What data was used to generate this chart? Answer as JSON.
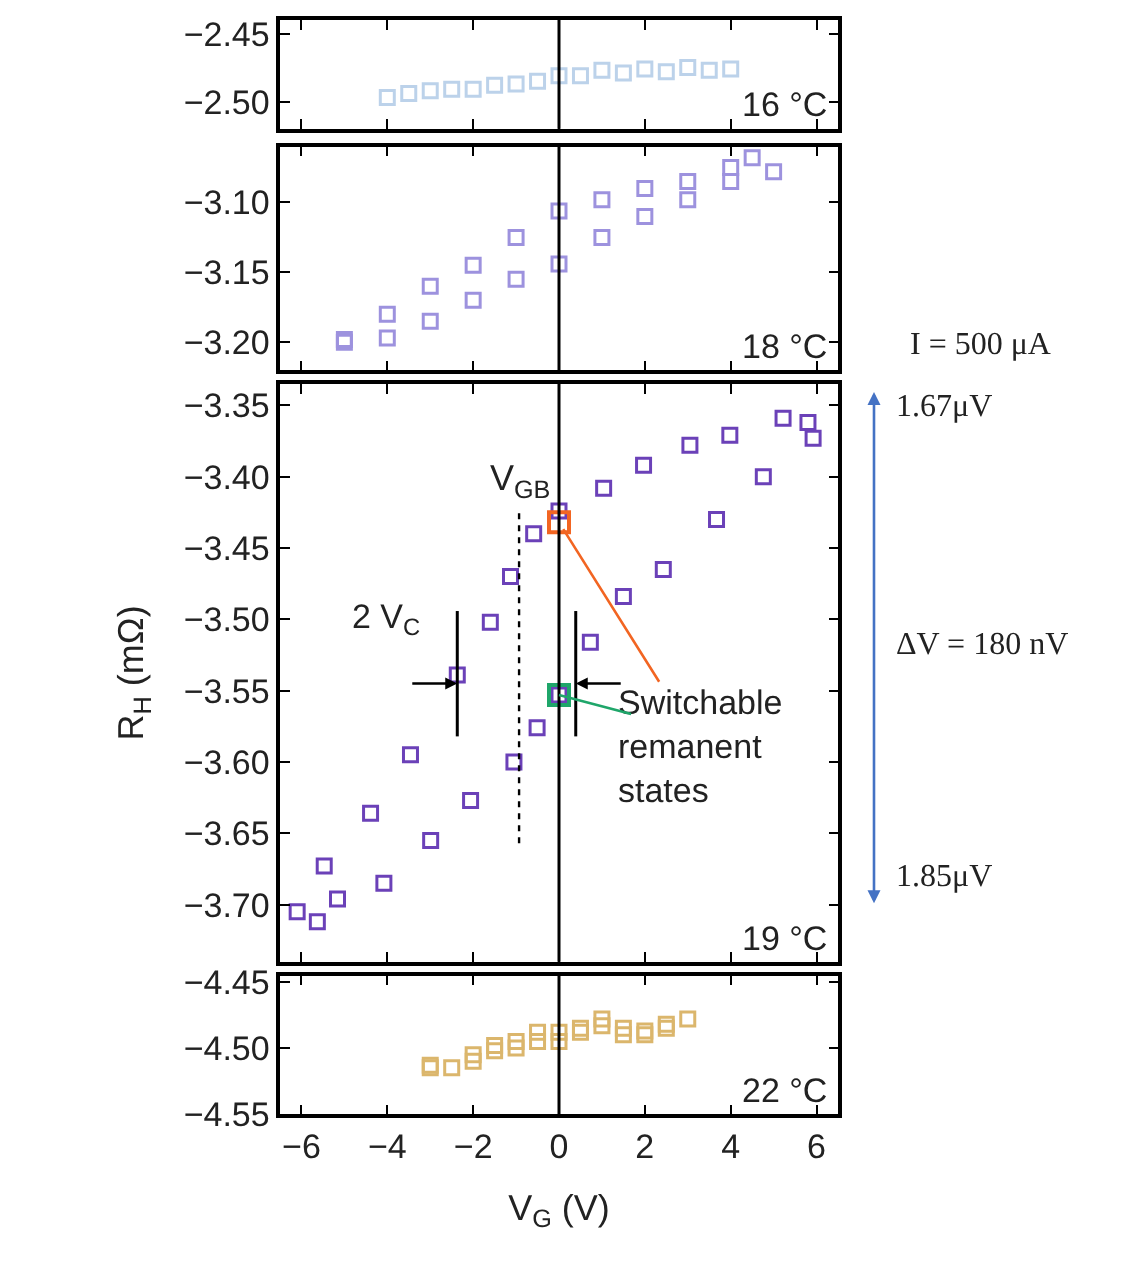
{
  "chart_data": [
    {
      "type": "scatter",
      "marker": "square",
      "xlim": [
        -6.5,
        6.5
      ],
      "xticks": [
        -6,
        -4,
        -2,
        0,
        2,
        4,
        6
      ],
      "ylim": [
        -2.52,
        -2.44
      ],
      "yticks": [
        {
          "value": -2.5,
          "label": "−2.50"
        },
        {
          "value": -2.45,
          "label": "−2.45"
        }
      ],
      "tick_labels": "y",
      "ref_lines": [
        {
          "axis": "x",
          "value": 0,
          "line_style": "solid"
        }
      ],
      "annotations": [
        "16 °C"
      ],
      "series": [
        {
          "color": "#bcd2ea",
          "x": [
            -4,
            -3,
            -2,
            -1,
            0,
            1,
            2,
            3,
            4,
            3.5,
            2.5,
            1.5,
            0.5,
            -0.5,
            -1.5,
            -2.5,
            -3.5
          ],
          "values": [
            -2.497,
            -2.492,
            -2.491,
            -2.487,
            -2.481,
            -2.477,
            -2.476,
            -2.475,
            -2.476,
            -2.477,
            -2.478,
            -2.479,
            -2.481,
            -2.485,
            -2.488,
            -2.491,
            -2.494
          ]
        }
      ]
    },
    {
      "type": "scatter",
      "marker": "square",
      "xlim": [
        -6.5,
        6.5
      ],
      "xticks": [
        -6,
        -4,
        -2,
        0,
        2,
        4,
        6
      ],
      "ylim": [
        -3.22,
        -3.06
      ],
      "yticks": [
        {
          "value": -3.2,
          "label": "−3.20"
        },
        {
          "value": -3.15,
          "label": "−3.15"
        },
        {
          "value": -3.1,
          "label": "−3.10"
        }
      ],
      "tick_labels": "y",
      "ref_lines": [
        {
          "axis": "x",
          "value": 0,
          "line_style": "solid"
        }
      ],
      "annotations": [
        "18 °C"
      ],
      "series": [
        {
          "color": "#9d92de",
          "x": [
            -5,
            -4,
            -3,
            -2,
            -1,
            0,
            1,
            2,
            3,
            4,
            4.5,
            5,
            4,
            3,
            2,
            1,
            0,
            -1,
            -2,
            -3,
            -4,
            -5
          ],
          "values": [
            -3.198,
            -3.18,
            -3.16,
            -3.145,
            -3.125,
            -3.106,
            -3.098,
            -3.09,
            -3.085,
            -3.075,
            -3.068,
            -3.078,
            -3.085,
            -3.098,
            -3.11,
            -3.125,
            -3.144,
            -3.155,
            -3.17,
            -3.185,
            -3.197,
            -3.2
          ]
        }
      ]
    },
    {
      "type": "scatter",
      "marker": "square",
      "ylabel": "R$_{H}$ (mΩ)",
      "xlim": [
        -6.5,
        6.5
      ],
      "xticks": [
        -6,
        -4,
        -2,
        0,
        2,
        4,
        6
      ],
      "ylim": [
        -3.74,
        -3.335
      ],
      "yticks": [
        {
          "value": -3.7,
          "label": "−3.70"
        },
        {
          "value": -3.65,
          "label": "−3.65"
        },
        {
          "value": -3.6,
          "label": "−3.60"
        },
        {
          "value": -3.55,
          "label": "−3.55"
        },
        {
          "value": -3.5,
          "label": "−3.50"
        },
        {
          "value": -3.45,
          "label": "−3.45"
        },
        {
          "value": -3.4,
          "label": "−3.40"
        },
        {
          "value": -3.35,
          "label": "−3.35"
        }
      ],
      "tick_labels": "y",
      "ref_lines": [
        {
          "axis": "x",
          "value": 0,
          "line_style": "solid"
        },
        {
          "axis": "x",
          "value": -0.93,
          "label": "V$_{GB}$",
          "line_style": "dotted"
        },
        {
          "axis": "x",
          "value": -2.37,
          "line_style": "solid"
        },
        {
          "axis": "x",
          "value": 0.39,
          "line_style": "solid"
        }
      ],
      "annotations": [
        "19 °C",
        "2 V$_{C}$",
        {
          "text": "Switchable\nremanent\nstates",
          "x": 0,
          "y": -3.432
        },
        "I = 500 μA",
        "1.67μV",
        "ΔV = 180 nV",
        "1.85μV"
      ],
      "series": [
        {
          "color": "#6b41b8",
          "x": [
            -6.1,
            -5.47,
            -4.39,
            -3.46,
            -2.37,
            -1.6,
            -1.13,
            -0.59,
            0,
            1.04,
            1.97,
            3.05,
            3.98,
            5.22,
            5.8,
            5.92,
            4.76,
            3.67,
            2.43,
            1.5,
            0.73,
            0,
            -0.51,
            -1.05,
            -2.06,
            -2.99,
            -4.08,
            -5.16,
            -5.63
          ],
          "values": [
            -3.705,
            -3.673,
            -3.636,
            -3.595,
            -3.539,
            -3.502,
            -3.47,
            -3.44,
            -3.424,
            -3.408,
            -3.392,
            -3.378,
            -3.371,
            -3.359,
            -3.362,
            -3.373,
            -3.4,
            -3.43,
            -3.465,
            -3.484,
            -3.516,
            -3.553,
            -3.576,
            -3.6,
            -3.627,
            -3.655,
            -3.685,
            -3.696,
            -3.712
          ]
        },
        {
          "type": "scatter",
          "x": [
            0,
            0
          ],
          "values": [
            -3.432,
            -3.553
          ],
          "colors": [
            "#f26522",
            "#1fa66a"
          ]
        }
      ]
    },
    {
      "type": "scatter",
      "marker": "square",
      "xlabel": "V$_{G}$ (V)",
      "xlim": [
        -6.5,
        6.5
      ],
      "xticks": [
        {
          "value": -6,
          "label": "−6"
        },
        {
          "value": -4,
          "label": "−4"
        },
        {
          "value": -2,
          "label": "−2"
        },
        0,
        2,
        4,
        6
      ],
      "ylim": [
        -4.55,
        -4.445
      ],
      "yticks": [
        {
          "value": -4.55,
          "label": "−4.55"
        },
        {
          "value": -4.5,
          "label": "−4.50"
        },
        {
          "value": -4.45,
          "label": "−4.45"
        }
      ],
      "ref_lines": [
        {
          "axis": "x",
          "value": 0,
          "line_style": "solid"
        }
      ],
      "annotations": [
        "22 °C"
      ],
      "series": [
        {
          "color": "#dbb66c",
          "x": [
            -3,
            -2.5,
            -2,
            -1.5,
            -1,
            -0.5,
            0,
            0.5,
            1,
            1.5,
            2,
            2.5,
            3,
            2.5,
            2,
            1.5,
            1,
            0.5,
            0,
            -0.5,
            -1,
            -1.5,
            -2,
            -3
          ],
          "values": [
            -4.513,
            -4.515,
            -4.505,
            -4.498,
            -4.495,
            -4.488,
            -4.488,
            -4.485,
            -4.478,
            -4.485,
            -4.49,
            -4.482,
            -4.478,
            -4.485,
            -4.487,
            -4.49,
            -4.483,
            -4.488,
            -4.495,
            -4.495,
            -4.5,
            -4.502,
            -4.51,
            -4.515
          ]
        }
      ]
    }
  ]
}
